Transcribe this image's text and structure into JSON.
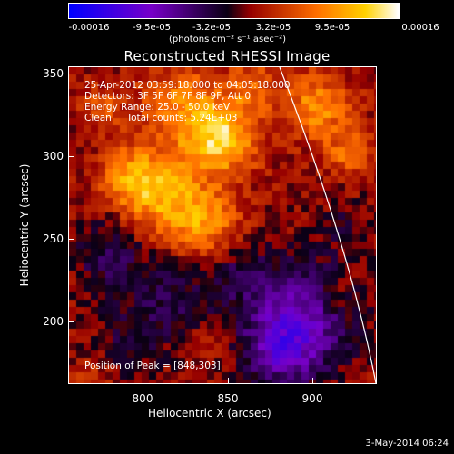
{
  "colorbar": {
    "ticks": [
      "-0.00016",
      "-9.5e-05",
      "-3.2e-05",
      "3.2e-05",
      "9.5e-05",
      "0.00016"
    ],
    "unit": "(photons cm⁻² s⁻¹ asec⁻²)"
  },
  "title": "Reconstructed RHESSI Image",
  "info": {
    "time": "25-Apr-2012 03:59:18.000 to 04:05:18.000",
    "detectors": "Detectors: 3F 5F 6F 7F 8F 9F, Att 0",
    "energy": "Energy Range: 25.0 - 50.0 keV",
    "method": "Clean     Total counts: 5.24E+03",
    "peak": "Position of Peak = [848,303]"
  },
  "axes": {
    "xlabel": "Heliocentric X (arcsec)",
    "ylabel": "Heliocentric Y (arcsec)",
    "xticks": [
      "800",
      "850",
      "900"
    ],
    "yticks": [
      "350",
      "300",
      "250",
      "200"
    ]
  },
  "footer": {
    "date": "3-May-2014 06:24"
  },
  "chart_data": {
    "type": "heatmap",
    "title": "Reconstructed RHESSI Image",
    "xlabel": "Heliocentric X (arcsec)",
    "ylabel": "Heliocentric Y (arcsec)",
    "xlim": [
      759,
      940
    ],
    "ylim": [
      158,
      353
    ],
    "xticks": [
      800,
      850,
      900
    ],
    "yticks": [
      200,
      250,
      300,
      350
    ],
    "colorbar_range": [
      -0.00016,
      0.00016
    ],
    "peak_position": [
      848,
      303
    ],
    "colormap_colors": [
      "#0000ff",
      "#7700cc",
      "#000000",
      "#aa0000",
      "#ff7700",
      "#ffffff"
    ]
  }
}
